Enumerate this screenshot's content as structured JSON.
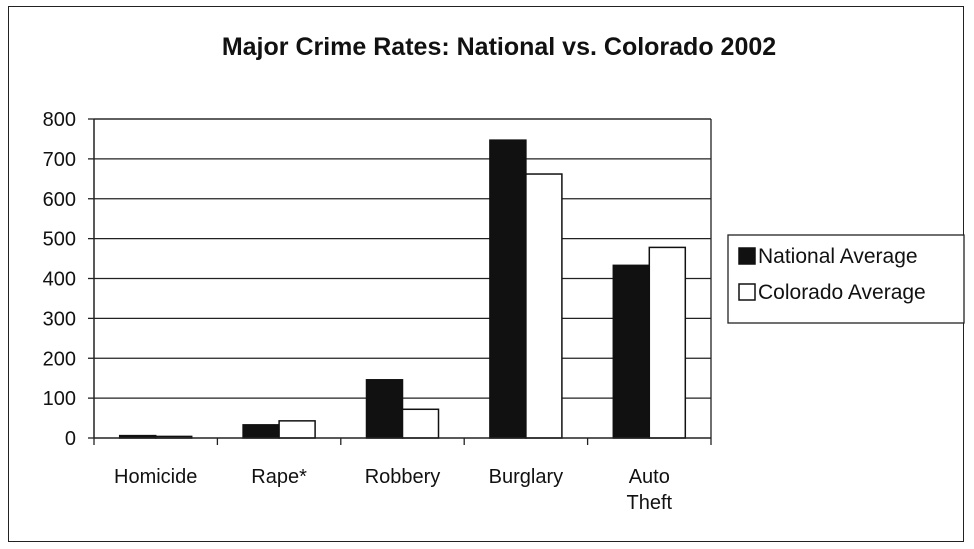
{
  "chart_data": {
    "type": "bar",
    "title": "Major Crime Rates: National vs. Colorado 2002",
    "xlabel": "",
    "ylabel": "",
    "ylim": [
      0,
      800
    ],
    "yticks": [
      0,
      100,
      200,
      300,
      400,
      500,
      600,
      700,
      800
    ],
    "categories": [
      "Homicide",
      "Rape*",
      "Robbery",
      "Burglary",
      "Auto Theft"
    ],
    "series": [
      {
        "name": "National Average",
        "color": "#111111",
        "values": [
          6,
          33,
          146,
          747,
          433
        ]
      },
      {
        "name": "Colorado Average",
        "color": "#ffffff",
        "values": [
          4,
          43,
          72,
          662,
          478
        ]
      }
    ],
    "grid": true,
    "legend_position": "right"
  }
}
